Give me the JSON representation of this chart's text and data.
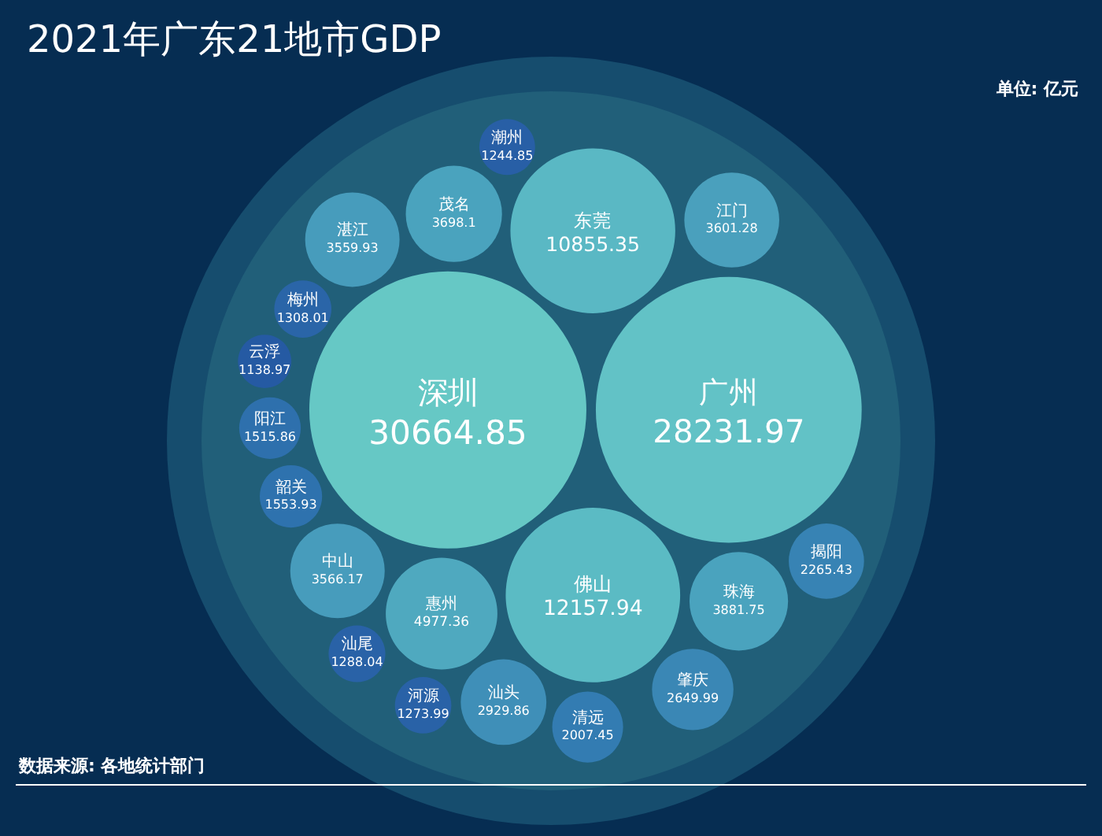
{
  "chart_data": {
    "type": "other",
    "title": "2021年广东21地市GDP",
    "subtitle": "单位: 亿元",
    "annotations": [
      "数据来源: 各地统计部门"
    ],
    "categories": [
      "深圳",
      "广州",
      "佛山",
      "东莞",
      "惠州",
      "珠海",
      "茂名",
      "江门",
      "中山",
      "湛江",
      "汕头",
      "肇庆",
      "揭阳",
      "清远",
      "韶关",
      "阳江",
      "梅州",
      "汕尾",
      "河源",
      "潮州",
      "云浮"
    ],
    "values": [
      30664.85,
      28231.97,
      12157.94,
      10855.35,
      4977.36,
      3881.75,
      3698.1,
      3601.28,
      3566.17,
      3559.93,
      2929.86,
      2649.99,
      2265.43,
      2007.45,
      1553.93,
      1515.86,
      1308.01,
      1288.04,
      1273.99,
      1244.85,
      1138.97
    ],
    "colors": [
      "#66c8c5",
      "#62c2c6",
      "#5bbbc4",
      "#5ab8c4",
      "#4fa9bf",
      "#4aa3be",
      "#4aa3be",
      "#4aa0bd",
      "#479cbc",
      "#479cbc",
      "#3f8fb8",
      "#3a87b5",
      "#3783b4",
      "#337cb2",
      "#2e72ae",
      "#2e70ad",
      "#2a65a8",
      "#2962a7",
      "#2962a7",
      "#285fa6",
      "#255aa3"
    ],
    "data_labels": true
  }
}
